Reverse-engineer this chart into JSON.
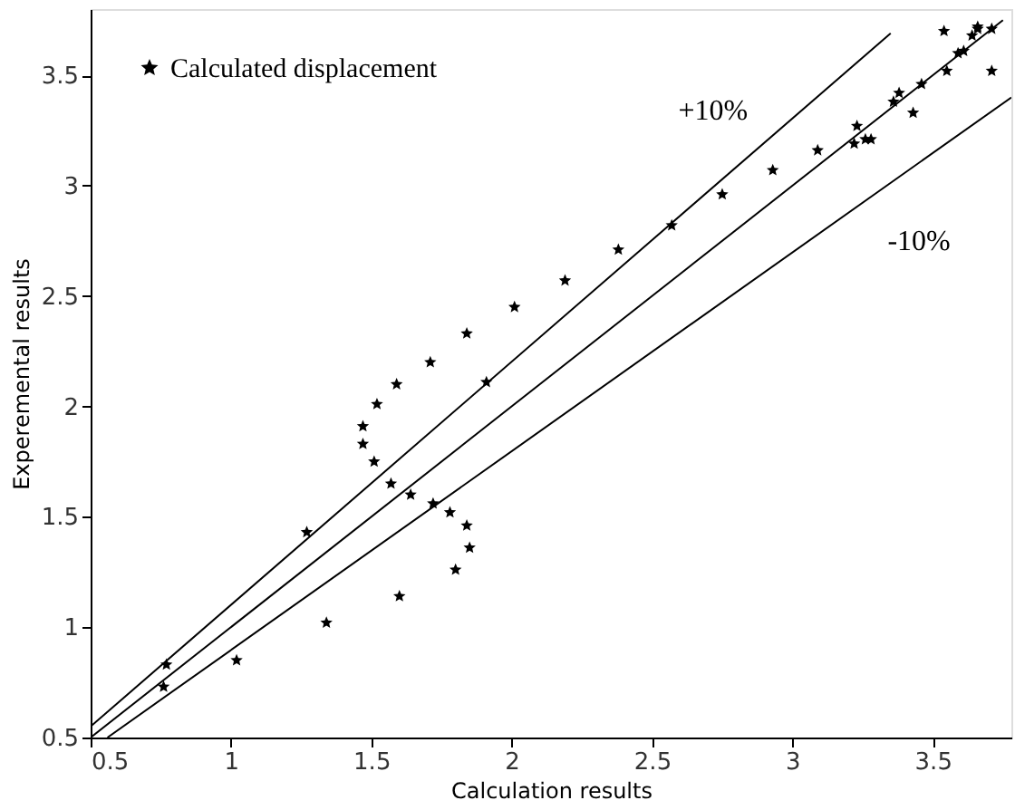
{
  "chart_data": {
    "type": "scatter",
    "xlabel": "Calculation results",
    "ylabel": "Experemental results",
    "xlim": [
      0.5,
      3.78
    ],
    "ylim": [
      0.5,
      3.8
    ],
    "xticks": [
      0.5,
      1,
      1.5,
      2,
      2.5,
      3,
      3.5
    ],
    "yticks": [
      0.5,
      1,
      1.5,
      2,
      2.5,
      3,
      3.5
    ],
    "grid": false,
    "legend": "top left",
    "series": [
      {
        "name": "Calculated displacement",
        "marker": "star",
        "color": "#000000",
        "x": [
          0.77,
          0.76,
          1.02,
          1.27,
          1.34,
          1.47,
          1.47,
          1.51,
          1.52,
          1.57,
          1.64,
          1.6,
          1.72,
          1.78,
          1.84,
          1.85,
          1.8,
          1.59,
          1.71,
          1.84,
          1.91,
          2.01,
          2.19,
          2.38,
          2.57,
          2.75,
          2.93,
          3.09,
          3.23,
          3.22,
          3.26,
          3.28,
          3.36,
          3.38,
          3.43,
          3.46,
          3.55,
          3.54,
          3.59,
          3.61,
          3.64,
          3.66,
          3.71,
          3.71,
          3.66
        ],
        "values": [
          0.83,
          0.73,
          0.85,
          1.43,
          1.02,
          1.91,
          1.83,
          1.75,
          2.01,
          1.65,
          1.6,
          1.14,
          1.56,
          1.52,
          1.46,
          1.36,
          1.26,
          2.1,
          2.2,
          2.33,
          2.11,
          2.45,
          2.57,
          2.71,
          2.82,
          2.96,
          3.07,
          3.16,
          3.27,
          3.19,
          3.21,
          3.21,
          3.38,
          3.42,
          3.33,
          3.46,
          3.52,
          3.7,
          3.6,
          3.61,
          3.68,
          3.72,
          3.71,
          3.52,
          3.71
        ]
      },
      {
        "type": "line",
        "marker": "none",
        "color": "#000000",
        "x": [
          0.5,
          3.35
        ],
        "values": [
          0.55,
          3.69
        ]
      },
      {
        "type": "line",
        "marker": "none",
        "color": "#000000",
        "x": [
          0.5,
          3.75
        ],
        "values": [
          0.5,
          3.75
        ]
      },
      {
        "type": "line",
        "marker": "none",
        "color": "#000000",
        "x": [
          0.56,
          3.78
        ],
        "values": [
          0.5,
          3.4
        ]
      }
    ],
    "annotations": [
      "+10%",
      "-10%"
    ]
  }
}
